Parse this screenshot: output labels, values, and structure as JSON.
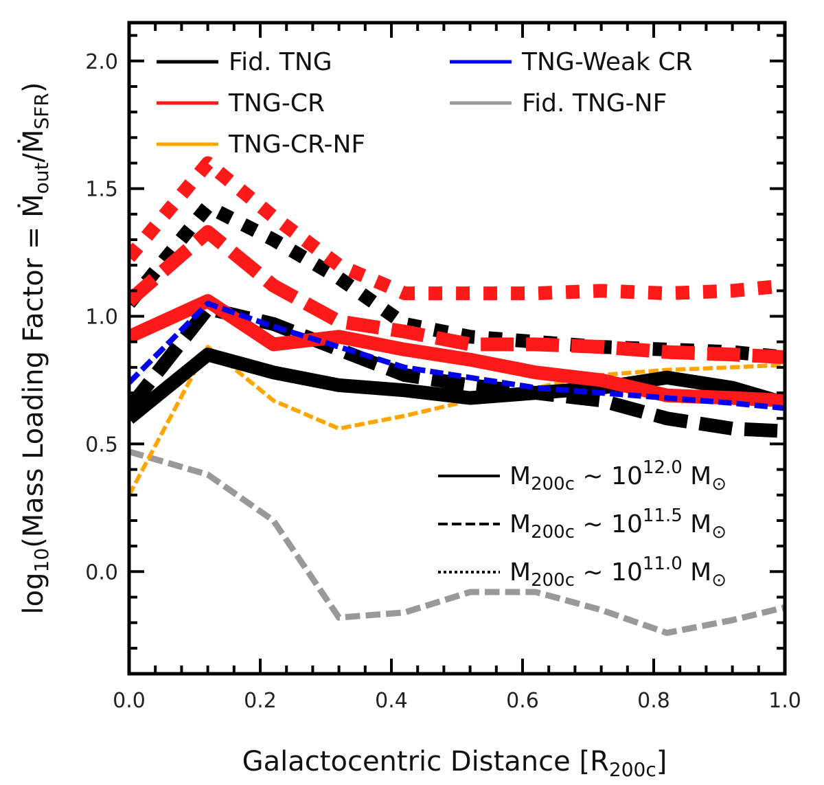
{
  "chart_data": {
    "type": "line",
    "xlabel": "Galactocentric Distance [R",
    "xlabel_sub": "200c",
    "xlabel_tail": "]",
    "ylabel_prefix": "log",
    "ylabel_prefix_sub": "10",
    "ylabel_main": "(Mass Loading Factor = Ṁ",
    "ylabel_sub1": "out",
    "ylabel_mid": "/Ṁ",
    "ylabel_sub2": "SFR",
    "ylabel_tail": ")",
    "xlim": [
      0.0,
      1.0
    ],
    "ylim": [
      -0.4,
      2.15
    ],
    "xticks": [
      "0.0",
      "0.2",
      "0.4",
      "0.6",
      "0.8",
      "1.0"
    ],
    "yticks": [
      "0.0",
      "0.5",
      "1.0",
      "1.5",
      "2.0"
    ],
    "legend_models": [
      {
        "label": "Fid. TNG",
        "color": "#000000"
      },
      {
        "label": "TNG-Weak CR",
        "color": "#0000ee"
      },
      {
        "label": "TNG-CR",
        "color": "#ff1a1a"
      },
      {
        "label": "Fid. TNG-NF",
        "color": "#999999"
      },
      {
        "label": "TNG-CR-NF",
        "color": "#ffa500"
      }
    ],
    "legend_masses": [
      {
        "style": "solid",
        "label_prefix": "M",
        "label_sub": "200c",
        "label_mid": " ~ 10",
        "label_sup": "12.0",
        "label_unit": " M",
        "label_unit_sub": "⊙"
      },
      {
        "style": "dashed",
        "label_prefix": "M",
        "label_sub": "200c",
        "label_mid": " ~ 10",
        "label_sup": "11.5",
        "label_unit": " M",
        "label_unit_sub": "⊙"
      },
      {
        "style": "dotted",
        "label_prefix": "M",
        "label_sub": "200c",
        "label_mid": " ~ 10",
        "label_sup": "11.0",
        "label_unit": " M",
        "label_unit_sub": "⊙"
      }
    ],
    "series": [
      {
        "name": "Fid. TNG-NF 11.5",
        "model": "Fid. TNG-NF",
        "style": "dashed",
        "color": "#999999",
        "width": 9,
        "x": [
          0.0,
          0.12,
          0.22,
          0.32,
          0.42,
          0.52,
          0.62,
          0.72,
          0.82,
          0.92,
          1.0
        ],
        "y": [
          0.47,
          0.38,
          0.2,
          -0.18,
          -0.16,
          -0.08,
          -0.08,
          -0.15,
          -0.24,
          -0.19,
          -0.14
        ]
      },
      {
        "name": "TNG-CR-NF 11.5",
        "model": "TNG-CR-NF",
        "style": "dashed",
        "color": "#ffa500",
        "width": 6,
        "x": [
          0.0,
          0.12,
          0.22,
          0.32,
          0.42,
          0.52,
          0.62,
          0.72,
          0.82,
          0.92,
          1.0
        ],
        "y": [
          0.3,
          0.88,
          0.67,
          0.56,
          0.61,
          0.67,
          0.72,
          0.77,
          0.79,
          0.8,
          0.81
        ]
      },
      {
        "name": "Fid. TNG 12.0",
        "model": "Fid. TNG",
        "style": "solid",
        "color": "#000000",
        "width": 20,
        "x": [
          0.0,
          0.12,
          0.22,
          0.32,
          0.42,
          0.52,
          0.62,
          0.72,
          0.82,
          0.92,
          1.0
        ],
        "y": [
          0.6,
          0.85,
          0.78,
          0.73,
          0.71,
          0.68,
          0.7,
          0.72,
          0.76,
          0.72,
          0.66
        ]
      },
      {
        "name": "Fid. TNG 11.5",
        "model": "Fid. TNG",
        "style": "dashed",
        "color": "#000000",
        "width": 20,
        "x": [
          0.0,
          0.12,
          0.22,
          0.32,
          0.42,
          0.52,
          0.62,
          0.72,
          0.82,
          0.92,
          1.0
        ],
        "y": [
          0.64,
          1.03,
          0.97,
          0.87,
          0.77,
          0.73,
          0.7,
          0.67,
          0.6,
          0.56,
          0.55
        ]
      },
      {
        "name": "TNG-CR 12.0",
        "model": "TNG-CR",
        "style": "solid",
        "color": "#ff1a1a",
        "width": 20,
        "x": [
          0.0,
          0.12,
          0.22,
          0.32,
          0.42,
          0.52,
          0.62,
          0.72,
          0.82,
          0.92,
          1.0
        ],
        "y": [
          0.92,
          1.06,
          0.89,
          0.92,
          0.87,
          0.83,
          0.78,
          0.75,
          0.69,
          0.68,
          0.67
        ]
      },
      {
        "name": "TNG-Weak CR 11.5",
        "model": "TNG-Weak CR",
        "style": "dashed",
        "color": "#0000ee",
        "width": 8,
        "x": [
          0.0,
          0.12,
          0.22,
          0.32,
          0.42,
          0.52,
          0.62,
          0.72,
          0.82,
          0.92,
          1.0
        ],
        "y": [
          0.74,
          1.05,
          0.96,
          0.88,
          0.8,
          0.76,
          0.72,
          0.7,
          0.68,
          0.66,
          0.64
        ]
      },
      {
        "name": "Fid. TNG 11.0",
        "model": "Fid. TNG",
        "style": "dotted",
        "color": "#000000",
        "width": 20,
        "x": [
          0.0,
          0.12,
          0.22,
          0.32,
          0.42,
          0.52,
          0.62,
          0.72,
          0.82,
          0.92,
          1.0
        ],
        "y": [
          1.05,
          1.43,
          1.3,
          1.15,
          0.97,
          0.92,
          0.9,
          0.88,
          0.87,
          0.86,
          0.84
        ]
      },
      {
        "name": "TNG-CR 11.5",
        "model": "TNG-CR",
        "style": "dashed",
        "color": "#ff1a1a",
        "width": 20,
        "x": [
          0.0,
          0.12,
          0.22,
          0.32,
          0.42,
          0.52,
          0.62,
          0.72,
          0.82,
          0.92,
          1.0
        ],
        "y": [
          1.06,
          1.33,
          1.12,
          0.98,
          0.94,
          0.89,
          0.89,
          0.88,
          0.86,
          0.85,
          0.84
        ]
      },
      {
        "name": "TNG-CR 11.0",
        "model": "TNG-CR",
        "style": "dotted",
        "color": "#ff1a1a",
        "width": 20,
        "x": [
          0.0,
          0.12,
          0.22,
          0.32,
          0.42,
          0.52,
          0.62,
          0.72,
          0.82,
          0.92,
          1.0
        ],
        "y": [
          1.23,
          1.6,
          1.39,
          1.2,
          1.09,
          1.09,
          1.09,
          1.1,
          1.09,
          1.1,
          1.12
        ]
      }
    ]
  }
}
